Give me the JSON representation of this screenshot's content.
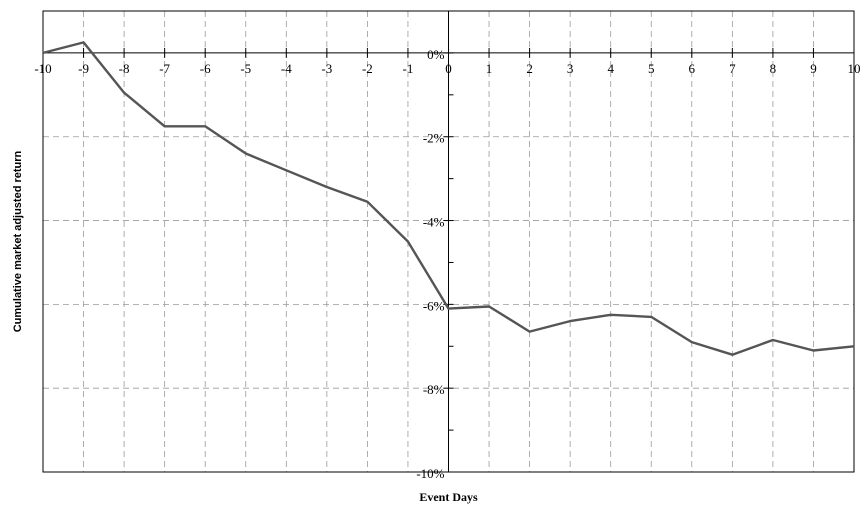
{
  "chart_data": {
    "type": "line",
    "title": "",
    "xlabel": "Event Days",
    "ylabel": "Cumulative market adjusted return",
    "xlim": [
      -10,
      10
    ],
    "ylim": [
      -10,
      1
    ],
    "x_ticks": [
      -10,
      -9,
      -8,
      -7,
      -6,
      -5,
      -4,
      -3,
      -2,
      -1,
      0,
      1,
      2,
      3,
      4,
      5,
      6,
      7,
      8,
      9,
      10
    ],
    "x_tick_labels": [
      "-10",
      "-9",
      "-8",
      "-7",
      "-6",
      "-5",
      "-4",
      "-3",
      "-2",
      "-1",
      "0",
      "1",
      "2",
      "3",
      "4",
      "5",
      "6",
      "7",
      "8",
      "9",
      "10"
    ],
    "y_ticks": [
      0,
      -2,
      -4,
      -6,
      -8,
      -10
    ],
    "y_tick_labels": [
      "0%",
      "-2%",
      "-4%",
      "-6%",
      "-8%",
      "-10%"
    ],
    "grid": true,
    "grid_style": "dashed",
    "line_color": "#555555",
    "series": [
      {
        "x": [
          -10,
          -9,
          -8,
          -7,
          -6,
          -5,
          -4,
          -3,
          -2,
          -1,
          0,
          1,
          2,
          3,
          4,
          5,
          6,
          7,
          8,
          9,
          10
        ],
        "values": [
          0.0,
          0.25,
          -0.95,
          -1.75,
          -1.75,
          -2.4,
          -2.8,
          -3.2,
          -3.55,
          -4.5,
          -6.1,
          -6.05,
          -6.65,
          -6.4,
          -6.25,
          -6.3,
          -6.9,
          -7.2,
          -6.85,
          -7.1,
          -7.0
        ]
      }
    ]
  }
}
